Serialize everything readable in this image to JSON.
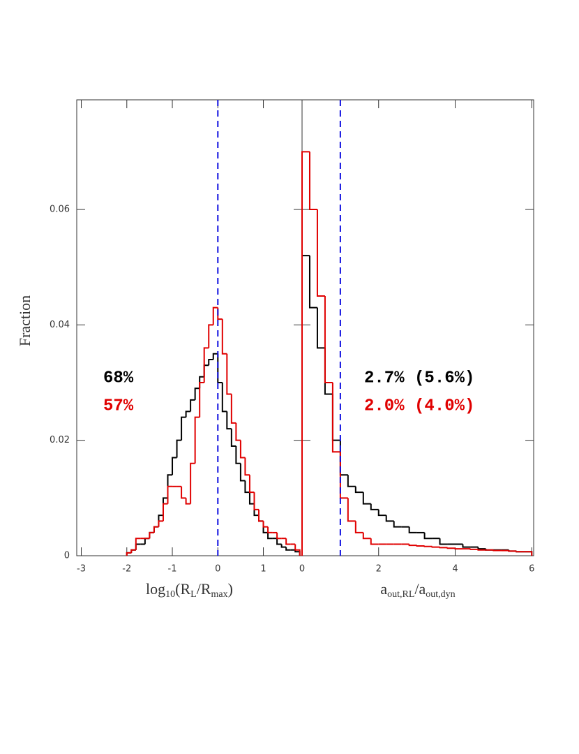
{
  "chart_data": [
    {
      "type": "histogram",
      "xlabel_parts": [
        {
          "text": "log"
        },
        {
          "text": "10",
          "sub": true
        },
        {
          "text": "(R"
        },
        {
          "text": "L",
          "sub": true
        },
        {
          "text": "/R"
        },
        {
          "text": "max",
          "sub": true
        },
        {
          "text": ")"
        }
      ],
      "ylabel": "Fraction",
      "xlim": [
        -3.1,
        1.85
      ],
      "ylim": [
        0,
        0.079
      ],
      "xticks": [
        -3,
        -2,
        -1,
        0,
        1
      ],
      "yticks": [
        0,
        0.02,
        0.04,
        0.06
      ],
      "ytick_labels": true,
      "vlines": [
        0
      ],
      "vline_color": "#1010e0",
      "bins": [
        -2.0,
        -1.9,
        -1.8,
        -1.7,
        -1.6,
        -1.5,
        -1.4,
        -1.3,
        -1.2,
        -1.1,
        -1.0,
        -0.9,
        -0.8,
        -0.7,
        -0.6,
        -0.5,
        -0.4,
        -0.3,
        -0.2,
        -0.1,
        0.0,
        0.1,
        0.2,
        0.3,
        0.4,
        0.5,
        0.6,
        0.7,
        0.8,
        0.9,
        1.0,
        1.1,
        1.2,
        1.3,
        1.4,
        1.5,
        1.6,
        1.7,
        1.8
      ],
      "series": [
        {
          "color": "#000000",
          "values": [
            0.0005,
            0.001,
            0.002,
            0.002,
            0.003,
            0.004,
            0.005,
            0.007,
            0.01,
            0.014,
            0.017,
            0.02,
            0.024,
            0.025,
            0.027,
            0.029,
            0.031,
            0.033,
            0.034,
            0.035,
            0.03,
            0.025,
            0.022,
            0.019,
            0.016,
            0.013,
            0.011,
            0.009,
            0.007,
            0.006,
            0.004,
            0.003,
            0.003,
            0.002,
            0.0015,
            0.001,
            0.001,
            0.0007
          ]
        },
        {
          "color": "#e00000",
          "values": [
            0.0005,
            0.001,
            0.003,
            0.003,
            0.003,
            0.004,
            0.005,
            0.006,
            0.009,
            0.012,
            0.012,
            0.012,
            0.01,
            0.009,
            0.016,
            0.024,
            0.03,
            0.036,
            0.04,
            0.043,
            0.041,
            0.035,
            0.028,
            0.023,
            0.02,
            0.017,
            0.014,
            0.011,
            0.008,
            0.006,
            0.005,
            0.004,
            0.004,
            0.003,
            0.003,
            0.002,
            0.002,
            0.001
          ]
        }
      ],
      "annotations": [
        {
          "text": "68%",
          "color": "#000000"
        },
        {
          "text": "57%",
          "color": "#e00000"
        }
      ]
    },
    {
      "type": "histogram",
      "xlabel_parts": [
        {
          "text": "a"
        },
        {
          "text": "out,RL",
          "sub": true
        },
        {
          "text": "/a"
        },
        {
          "text": "out,dyn",
          "sub": true
        }
      ],
      "xlim": [
        0,
        6.05
      ],
      "ylim": [
        0,
        0.079
      ],
      "xticks": [
        0,
        2,
        4,
        6
      ],
      "yticks": [
        0,
        0.02,
        0.04,
        0.06
      ],
      "ytick_labels": false,
      "vlines": [
        1
      ],
      "vline_color": "#1010e0",
      "bins": [
        0,
        0.2,
        0.4,
        0.6,
        0.8,
        1.0,
        1.2,
        1.4,
        1.6,
        1.8,
        2.0,
        2.2,
        2.4,
        2.6,
        2.8,
        3.0,
        3.2,
        3.4,
        3.6,
        3.8,
        4.0,
        4.2,
        4.4,
        4.6,
        4.8,
        5.0,
        5.2,
        5.4,
        5.6,
        5.8,
        6.0
      ],
      "series": [
        {
          "color": "#000000",
          "values": [
            0.052,
            0.043,
            0.036,
            0.028,
            0.02,
            0.014,
            0.012,
            0.011,
            0.009,
            0.008,
            0.007,
            0.006,
            0.005,
            0.005,
            0.004,
            0.004,
            0.003,
            0.003,
            0.002,
            0.002,
            0.002,
            0.0015,
            0.0015,
            0.0012,
            0.001,
            0.001,
            0.001,
            0.0008,
            0.0007,
            0.0007
          ]
        },
        {
          "color": "#e00000",
          "values": [
            0.07,
            0.06,
            0.045,
            0.03,
            0.018,
            0.01,
            0.006,
            0.004,
            0.003,
            0.002,
            0.002,
            0.002,
            0.002,
            0.002,
            0.0018,
            0.0017,
            0.0016,
            0.0015,
            0.0014,
            0.0013,
            0.0012,
            0.0012,
            0.0011,
            0.001,
            0.001,
            0.0009,
            0.0009,
            0.0008,
            0.0007,
            0.0007
          ]
        }
      ],
      "annotations": [
        {
          "text": "2.7% (5.6%)",
          "color": "#000000"
        },
        {
          "text": "2.0% (4.0%)",
          "color": "#e00000"
        }
      ]
    }
  ]
}
